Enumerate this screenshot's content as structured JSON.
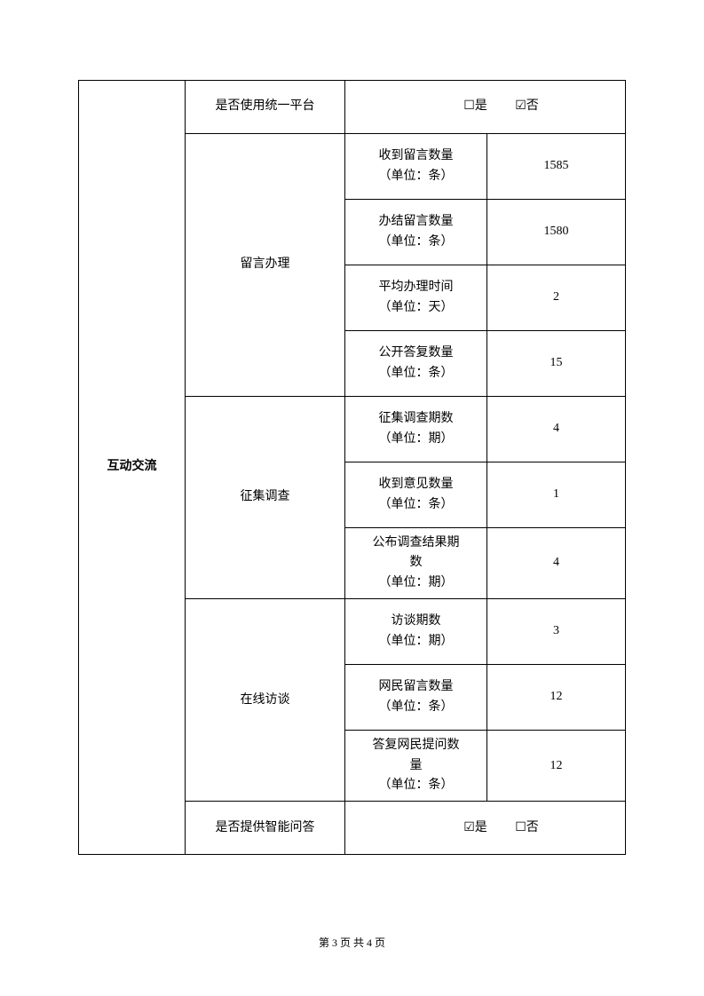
{
  "category": "互动交流",
  "sections": {
    "platform": {
      "label": "是否使用统一平台",
      "yes": "☐是",
      "no": "☑否"
    },
    "messages": {
      "label": "留言办理",
      "rows": [
        {
          "metric": "收到留言数量<br>（单位：条）",
          "value": "1585"
        },
        {
          "metric": "办结留言数量<br>（单位：条）",
          "value": "1580"
        },
        {
          "metric": "平均办理时间<br>（单位：天）",
          "value": "2"
        },
        {
          "metric": "公开答复数量<br>（单位：条）",
          "value": "15"
        }
      ]
    },
    "survey": {
      "label": "征集调查",
      "rows": [
        {
          "metric": "征集调查期数<br>（单位：期）",
          "value": "4"
        },
        {
          "metric": "收到意见数量<br>（单位：条）",
          "value": "1"
        },
        {
          "metric": "公布调查结果期<br>数<br>（单位：期）",
          "value": "4"
        }
      ]
    },
    "interview": {
      "label": "在线访谈",
      "rows": [
        {
          "metric": "访谈期数<br>（单位：期）",
          "value": "3"
        },
        {
          "metric": "网民留言数量<br>（单位：条）",
          "value": "12"
        },
        {
          "metric": "答复网民提问数<br>量<br>（单位：条）",
          "value": "12"
        }
      ]
    },
    "smartqa": {
      "label": "是否提供智能问答",
      "yes": "☑是",
      "no": "☐否"
    }
  },
  "footer": "第 3 页 共 4 页"
}
